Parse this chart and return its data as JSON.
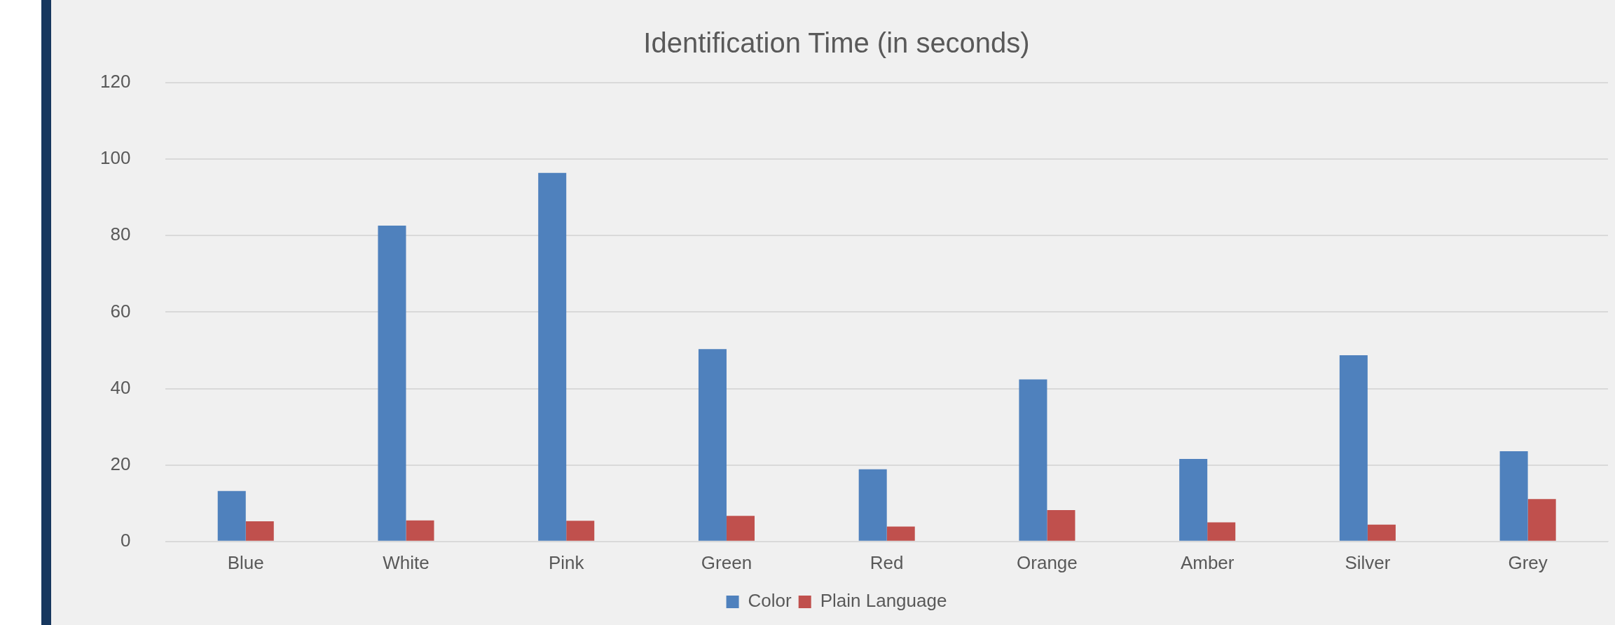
{
  "chart_data": {
    "type": "bar",
    "title": "Identification Time (in seconds)",
    "categories": [
      "Blue",
      "White",
      "Pink",
      "Green",
      "Red",
      "Orange",
      "Amber",
      "Silver",
      "Grey"
    ],
    "series": [
      {
        "name": "Color",
        "color": "#4f81bd",
        "values": [
          13.2,
          82.6,
          96.4,
          50.3,
          18.9,
          42.4,
          21.6,
          48.7,
          23.6
        ]
      },
      {
        "name": "Plain Language",
        "color": "#c0504d",
        "values": [
          5.3,
          5.5,
          5.4,
          6.7,
          3.9,
          8.2,
          5.0,
          4.4,
          11.1
        ]
      }
    ],
    "ylim": [
      0,
      120
    ],
    "yticks": [
      0,
      20,
      40,
      60,
      80,
      100,
      120
    ],
    "grid": "y",
    "legend": "bottom"
  }
}
